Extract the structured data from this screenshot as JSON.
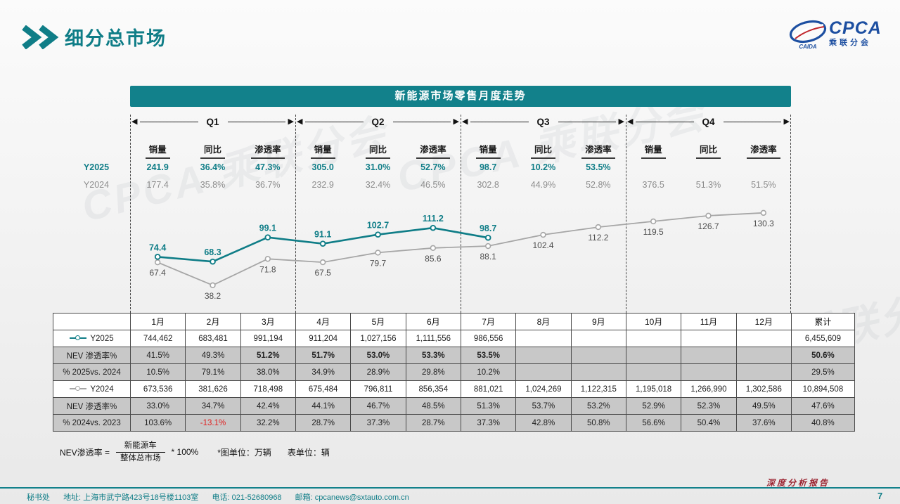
{
  "header": {
    "title": "细分总市场",
    "logo": {
      "text": "CPCA",
      "sub": "乘联分会",
      "caption": "CAIDA"
    }
  },
  "panel": {
    "title": "新能源市场零售月度走势"
  },
  "quarter_stats": {
    "col_headers": [
      "销量",
      "同比",
      "渗透率"
    ],
    "row_labels": {
      "y2025": "Y2025",
      "y2024": "Y2024"
    },
    "quarters": [
      {
        "label": "Q1",
        "y2025": [
          "241.9",
          "36.4%",
          "47.3%"
        ],
        "y2024": [
          "177.4",
          "35.8%",
          "36.7%"
        ]
      },
      {
        "label": "Q2",
        "y2025": [
          "305.0",
          "31.0%",
          "52.7%"
        ],
        "y2024": [
          "232.9",
          "32.4%",
          "46.5%"
        ]
      },
      {
        "label": "Q3",
        "y2025": [
          "98.7",
          "10.2%",
          "53.5%"
        ],
        "y2024": [
          "302.8",
          "44.9%",
          "52.8%"
        ]
      },
      {
        "label": "Q4",
        "y2025": [
          "",
          "",
          ""
        ],
        "y2024": [
          "376.5",
          "51.3%",
          "51.5%"
        ]
      }
    ]
  },
  "chart_data": {
    "type": "line",
    "title": "新能源市场零售月度走势",
    "categories": [
      "1月",
      "2月",
      "3月",
      "4月",
      "5月",
      "6月",
      "7月",
      "8月",
      "9月",
      "10月",
      "11月",
      "12月"
    ],
    "series": [
      {
        "name": "Y2025",
        "color": "#0f7d87",
        "values": [
          74.4,
          68.3,
          99.1,
          91.1,
          102.7,
          111.2,
          98.7
        ]
      },
      {
        "name": "Y2024",
        "color": "#a6a6a6",
        "values": [
          67.4,
          38.2,
          71.8,
          67.5,
          79.7,
          85.6,
          88.1,
          102.4,
          112.2,
          119.5,
          126.7,
          130.3
        ]
      }
    ],
    "ylim": [
      30,
      140
    ],
    "grid": false,
    "legend_position": "table-left",
    "unit": "万辆"
  },
  "table": {
    "month_headers": [
      "1月",
      "2月",
      "3月",
      "4月",
      "5月",
      "6月",
      "7月",
      "8月",
      "9月",
      "10月",
      "11月",
      "12月"
    ],
    "total_header": "累计",
    "rows": [
      {
        "label": "Y2025",
        "legend": "#0f7d87",
        "shade": "white",
        "values": [
          "744,462",
          "683,481",
          "991,194",
          "911,204",
          "1,027,156",
          "1,111,556",
          "986,556",
          "",
          "",
          "",
          "",
          ""
        ],
        "total": "6,455,609",
        "total_bold": false
      },
      {
        "label": "NEV 渗透率%",
        "shade": "gray",
        "values": [
          "41.5%",
          "49.3%",
          "51.2%",
          "51.7%",
          "53.0%",
          "53.3%",
          "53.5%",
          "",
          "",
          "",
          "",
          ""
        ],
        "total": "50.6%",
        "bold": [
          2,
          3,
          4,
          5,
          6
        ],
        "total_bold": true
      },
      {
        "label": "% 2025vs. 2024",
        "shade": "gray",
        "values": [
          "10.5%",
          "79.1%",
          "38.0%",
          "34.9%",
          "28.9%",
          "29.8%",
          "10.2%",
          "",
          "",
          "",
          "",
          ""
        ],
        "total": "29.5%",
        "total_bold": false
      },
      {
        "label": "Y2024",
        "legend": "#a6a6a6",
        "shade": "white",
        "values": [
          "673,536",
          "381,626",
          "718,498",
          "675,484",
          "796,811",
          "856,354",
          "881,021",
          "1,024,269",
          "1,122,315",
          "1,195,018",
          "1,266,990",
          "1,302,586"
        ],
        "total": "10,894,508",
        "total_bold": false
      },
      {
        "label": "NEV 渗透率%",
        "shade": "gray",
        "values": [
          "33.0%",
          "34.7%",
          "42.4%",
          "44.1%",
          "46.7%",
          "48.5%",
          "51.3%",
          "53.7%",
          "53.2%",
          "52.9%",
          "52.3%",
          "49.5%"
        ],
        "total": "47.6%",
        "total_bold": false
      },
      {
        "label": "% 2024vs. 2023",
        "shade": "gray",
        "values": [
          "103.6%",
          "-13.1%",
          "32.2%",
          "28.7%",
          "37.3%",
          "28.7%",
          "37.3%",
          "42.8%",
          "50.8%",
          "56.6%",
          "50.4%",
          "37.6%"
        ],
        "total": "40.8%",
        "red": [
          1
        ],
        "total_bold": false
      }
    ]
  },
  "formula": {
    "lhs": "NEV渗透率 =",
    "numerator": "新能源车",
    "denominator": "整体总市场",
    "rhs": "* 100%",
    "note_chart_unit": "*图单位：万辆",
    "note_table_unit": "表单位：辆"
  },
  "footer": {
    "secretariat": "秘书处",
    "address": "地址: 上海市武宁路423号18号楼1103室",
    "phone": "电话: 021-52680968",
    "email_label": "邮箱: cpcanews@sxtauto.com.cn",
    "report_label": "深度分析报告",
    "page_number": "7"
  },
  "watermark": "CPCA 乘联分会"
}
